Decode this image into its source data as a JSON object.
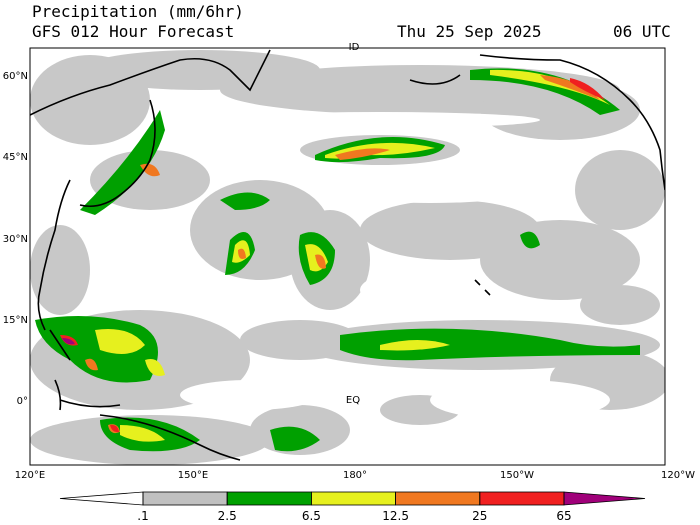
{
  "header": {
    "title": "Precipitation (mm/6hr)",
    "subtitle": "GFS 012 Hour Forecast",
    "date": "Thu 25 Sep 2025",
    "time": "06 UTC"
  },
  "map": {
    "lat_labels": [
      "60°N",
      "45°N",
      "30°N",
      "15°N",
      "0°"
    ],
    "lon_labels": [
      "120°E",
      "150°E",
      "180°",
      "150°W",
      "120°W"
    ],
    "equator_label": "EQ",
    "dateline_label": "ID"
  },
  "colorbar": {
    "levels": [
      {
        "value": 0.1,
        "label": ".1"
      },
      2.5,
      6.5,
      12.5,
      25,
      65
    ],
    "colors": [
      "#ffffff",
      "#c0c0c0",
      "#00a000",
      "#e6f01e",
      "#f07820",
      "#f02020",
      "#a0007a"
    ]
  }
}
